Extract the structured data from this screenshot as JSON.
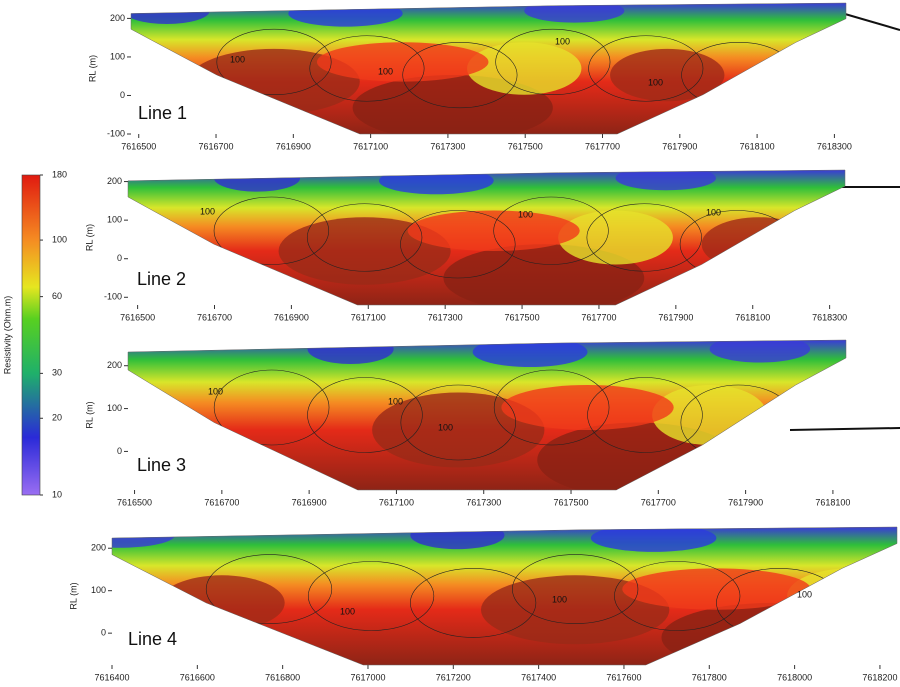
{
  "chart_data": [
    {
      "type": "section",
      "title": "Line 1",
      "ylabel": "RL (m)",
      "xlim": [
        7616480,
        7618330
      ],
      "xticks": [
        7616500,
        7616700,
        7616900,
        7617100,
        7617300,
        7617500,
        7617700,
        7617900,
        7618100,
        7618300
      ],
      "ylim": [
        -100,
        240
      ],
      "yticks": [
        -100,
        0,
        100,
        200
      ],
      "annotations": [
        "100",
        "100",
        "100",
        "100"
      ]
    },
    {
      "type": "section",
      "title": "Line 2",
      "ylabel": "RL (m)",
      "xlim": [
        7616475,
        7618340
      ],
      "xticks": [
        7616500,
        7616700,
        7616900,
        7617100,
        7617300,
        7617500,
        7617700,
        7617900,
        7618100,
        7618300
      ],
      "ylim": [
        -120,
        230
      ],
      "yticks": [
        -100,
        0,
        100,
        200
      ],
      "annotations": [
        "100",
        "100",
        "100"
      ]
    },
    {
      "type": "section",
      "title": "Line 3",
      "ylabel": "RL (m)",
      "xlim": [
        7616485,
        7618130
      ],
      "xticks": [
        7616500,
        7616700,
        7616900,
        7617100,
        7617300,
        7617500,
        7617700,
        7617900,
        7618100
      ],
      "ylim": [
        -90,
        260
      ],
      "yticks": [
        0,
        100,
        200
      ],
      "annotations": [
        "100",
        "100",
        "100"
      ]
    },
    {
      "type": "section",
      "title": "Line 4",
      "ylabel": "RL (m)",
      "xlim": [
        7616400,
        7618240
      ],
      "xticks": [
        7616400,
        7616600,
        7616800,
        7617000,
        7617200,
        7617400,
        7617600,
        7617800,
        7618000,
        7618200
      ],
      "ylim": [
        -75,
        250
      ],
      "yticks": [
        0,
        100,
        200
      ],
      "annotations": [
        "100",
        "100",
        "100"
      ]
    },
    {
      "type": "colorbar",
      "title": "Resistivity (Ohm.m)",
      "log_scale": true,
      "ylim": [
        10,
        180
      ],
      "yticks": [
        10,
        20,
        30,
        60,
        100,
        180
      ]
    }
  ]
}
